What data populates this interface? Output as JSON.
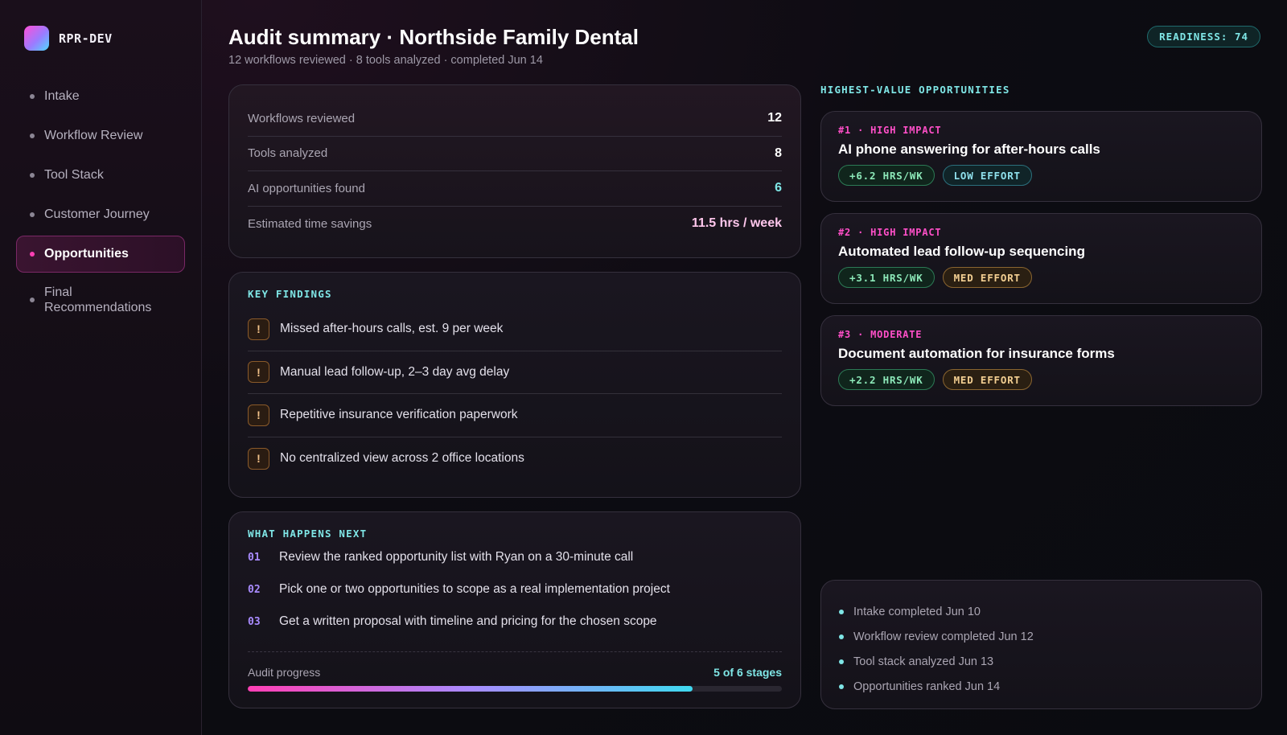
{
  "brand": {
    "name": "RPR-DEV"
  },
  "nav": {
    "items": [
      {
        "label": "Intake"
      },
      {
        "label": "Workflow Review"
      },
      {
        "label": "Tool Stack"
      },
      {
        "label": "Customer Journey"
      },
      {
        "label": "Opportunities"
      },
      {
        "label": "Final Recommendations"
      }
    ],
    "active_index": 4
  },
  "header": {
    "title": "Audit summary · Northside Family Dental",
    "subtitle": "12 workflows reviewed · 8 tools analyzed · completed Jun 14",
    "readiness": "READINESS: 74"
  },
  "stats": [
    {
      "label": "Workflows reviewed",
      "value": "12"
    },
    {
      "label": "Tools analyzed",
      "value": "8"
    },
    {
      "label": "AI opportunities found",
      "value": "6"
    },
    {
      "label": "Estimated time savings",
      "value": "11.5 hrs / week"
    }
  ],
  "findings": {
    "label": "KEY FINDINGS",
    "icon": "!",
    "items": [
      "Missed after-hours calls, est. 9 per week",
      "Manual lead follow-up, 2–3 day avg delay",
      "Repetitive insurance verification paperwork",
      "No centralized view across 2 office locations"
    ]
  },
  "next": {
    "label": "WHAT HAPPENS NEXT",
    "steps": [
      {
        "num": "01",
        "text": "Review the ranked opportunity list with Ryan on a 30-minute call"
      },
      {
        "num": "02",
        "text": "Pick one or two opportunities to scope as a real implementation project"
      },
      {
        "num": "03",
        "text": "Get a written proposal with timeline and pricing for the chosen scope"
      }
    ],
    "progress_label": "Audit progress",
    "progress_value": "5 of 6 stages",
    "progress_fraction": 0.833
  },
  "opportunities": {
    "label": "HIGHEST-VALUE OPPORTUNITIES",
    "items": [
      {
        "tag": "#1 · HIGH IMPACT",
        "title": "AI phone answering for after-hours calls",
        "hours": "+6.2 HRS/WK",
        "effort": "LOW EFFORT",
        "effort_color": "teal"
      },
      {
        "tag": "#2 · HIGH IMPACT",
        "title": "Automated lead follow-up sequencing",
        "hours": "+3.1 HRS/WK",
        "effort": "MED EFFORT",
        "effort_color": "amber"
      },
      {
        "tag": "#3 · MODERATE",
        "title": "Document automation for insurance forms",
        "hours": "+2.2 HRS/WK",
        "effort": "MED EFFORT",
        "effort_color": "amber"
      }
    ]
  },
  "timeline": [
    "Intake completed Jun 10",
    "Workflow review completed Jun 12",
    "Tool stack analyzed Jun 13",
    "Opportunities ranked Jun 14"
  ]
}
